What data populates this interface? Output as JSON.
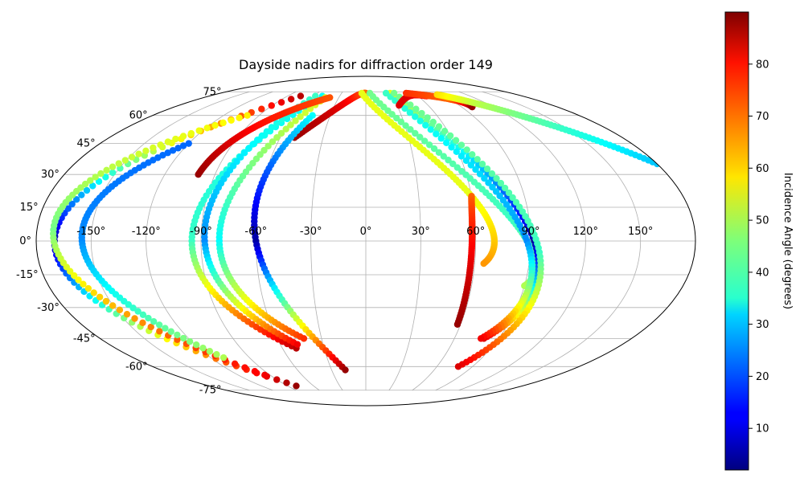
{
  "chart_data": {
    "type": "scatter",
    "projection": "mollweide",
    "title": "Dayside nadirs for diffraction order 149",
    "longitude_ticks": [
      "-150°",
      "-120°",
      "-90°",
      "-60°",
      "-30°",
      "0°",
      "30°",
      "60°",
      "90°",
      "120°",
      "150°"
    ],
    "latitude_ticks": [
      "75°",
      "60°",
      "45°",
      "30°",
      "15°",
      "0°",
      "-15°",
      "-30°",
      "-45°",
      "-60°",
      "-75°"
    ],
    "longitude_tick_values": [
      -150,
      -120,
      -90,
      -60,
      -30,
      0,
      30,
      60,
      90,
      120,
      150
    ],
    "latitude_tick_values": [
      75,
      60,
      45,
      30,
      15,
      0,
      -15,
      -30,
      -45,
      -60,
      -75
    ],
    "grid": true,
    "colorbar": {
      "label": "Incidence Angle (degrees)",
      "colormap": "jet",
      "range": [
        2,
        90
      ],
      "ticks": [
        "10",
        "20",
        "30",
        "40",
        "50",
        "60",
        "70",
        "80"
      ],
      "tick_values": [
        10,
        20,
        30,
        40,
        50,
        60,
        70,
        80
      ]
    },
    "tracks": [
      {
        "lon_start": -75,
        "lat_start": 72,
        "lon_apex": -170,
        "lat_apex": 0,
        "lon_end": -80,
        "lat_end": -72,
        "inc_start": 85,
        "inc_apex": 5,
        "inc_end": 88
      },
      {
        "lon_start": -100,
        "lat_start": 60,
        "lon_apex": -171,
        "lat_apex": 5,
        "lon_end": -95,
        "lat_end": -65,
        "inc_start": 58,
        "inc_apex": 45,
        "inc_end": 80
      },
      {
        "lon_start": -120,
        "lat_start": 45,
        "lon_apex": -155,
        "lat_apex": 0,
        "lon_end": -110,
        "lat_end": -55,
        "inc_start": 22,
        "inc_apex": 25,
        "inc_end": 50
      },
      {
        "lon_start": -50,
        "lat_start": 72,
        "lon_apex": -95,
        "lat_apex": 0,
        "lon_end": -50,
        "lat_end": -50,
        "inc_start": 35,
        "inc_apex": 40,
        "inc_end": 85
      },
      {
        "lon_start": -58,
        "lat_start": 72,
        "lon_apex": -88,
        "lat_apex": 0,
        "lon_end": -48,
        "lat_end": -48,
        "inc_start": 40,
        "inc_apex": 25,
        "inc_end": 80
      },
      {
        "lon_start": -45,
        "lat_start": 71,
        "lon_apex": -80,
        "lat_apex": 0,
        "lon_end": -42,
        "lat_end": -45,
        "inc_start": 55,
        "inc_apex": 35,
        "inc_end": 75
      },
      {
        "lon_start": -100,
        "lat_start": 30,
        "lon_apex": -82,
        "lat_apex": 55,
        "lon_end": -40,
        "lat_end": 71,
        "inc_start": 88,
        "inc_apex": 78,
        "inc_end": 72
      },
      {
        "lon_start": -50,
        "lat_start": 48,
        "lon_apex": -20,
        "lat_apex": 68,
        "lon_end": 0,
        "lat_end": 74,
        "inc_start": 88,
        "inc_apex": 80,
        "inc_end": 70
      },
      {
        "lon_start": -45,
        "lat_start": 60,
        "lon_apex": -60,
        "lat_apex": 0,
        "lon_end": -18,
        "lat_end": -62,
        "inc_start": 35,
        "inc_apex": 5,
        "inc_end": 88
      },
      {
        "lon_start": -5,
        "lat_start": 74,
        "lon_apex": 60,
        "lat_apex": 20,
        "lon_end": 65,
        "lat_end": -10,
        "inc_start": 55,
        "inc_apex": 55,
        "inc_end": 66
      },
      {
        "lon_start": 5,
        "lat_start": 74,
        "lon_apex": 80,
        "lat_apex": 10,
        "lon_end": 90,
        "lat_end": -20,
        "inc_start": 45,
        "inc_apex": 40,
        "inc_end": 50
      },
      {
        "lon_start": 30,
        "lat_start": 74,
        "lon_apex": 92,
        "lat_apex": 0,
        "lon_end": 80,
        "lat_end": -45,
        "inc_start": 55,
        "inc_apex": 5,
        "inc_end": 82
      },
      {
        "lon_start": 25,
        "lat_start": 74,
        "lon_apex": 88,
        "lat_apex": 0,
        "lon_end": 78,
        "lat_end": -45,
        "inc_start": 40,
        "inc_apex": 25,
        "inc_end": 80
      },
      {
        "lon_start": 35,
        "lat_start": 74,
        "lon_apex": 95,
        "lat_apex": -5,
        "lon_end": 78,
        "lat_end": -60,
        "inc_start": 45,
        "inc_apex": 40,
        "inc_end": 82
      },
      {
        "lon_start": 60,
        "lat_start": 20,
        "lon_apex": 58,
        "lat_apex": 0,
        "lon_end": 58,
        "lat_end": -38,
        "inc_start": 70,
        "inc_apex": 78,
        "inc_end": 88
      },
      {
        "lon_start": 32,
        "lat_start": 66,
        "lon_apex": 50,
        "lat_apex": 72,
        "lon_end": 70,
        "lat_end": 72,
        "inc_start": 82,
        "inc_apex": 82,
        "inc_end": 78
      },
      {
        "lon_start": 50,
        "lat_start": 74,
        "lon_apex": 90,
        "lat_apex": 70,
        "lon_end": 100,
        "lat_end": 65,
        "inc_start": 75,
        "inc_apex": 70,
        "inc_end": 88
      },
      {
        "lon_start": 85,
        "lat_start": 73,
        "lon_apex": 130,
        "lat_apex": 60,
        "lon_end": 180,
        "lat_end": 35,
        "inc_start": 60,
        "inc_apex": 45,
        "inc_end": 30
      }
    ]
  }
}
